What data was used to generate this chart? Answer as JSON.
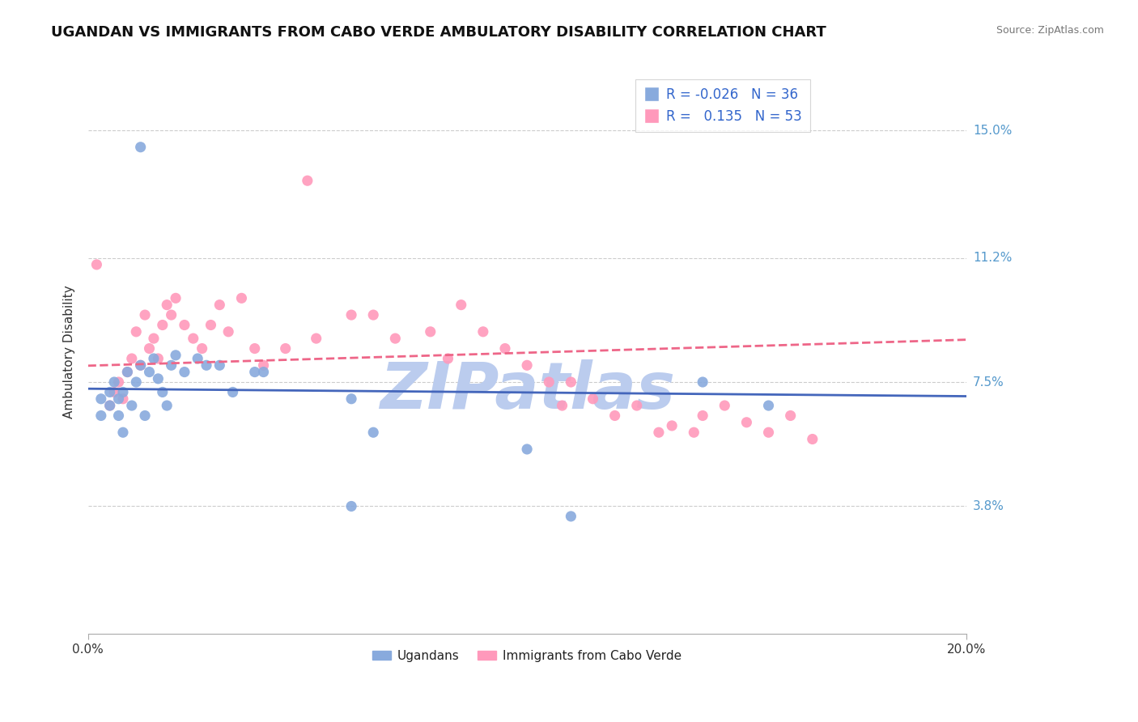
{
  "title": "UGANDAN VS IMMIGRANTS FROM CABO VERDE AMBULATORY DISABILITY CORRELATION CHART",
  "source": "Source: ZipAtlas.com",
  "ylabel": "Ambulatory Disability",
  "y_ticks": [
    0.0,
    0.038,
    0.075,
    0.112,
    0.15
  ],
  "y_tick_labels": [
    "",
    "3.8%",
    "7.5%",
    "11.2%",
    "15.0%"
  ],
  "xlim": [
    0.0,
    0.2
  ],
  "ylim": [
    0.0,
    0.168
  ],
  "blue_R": "-0.026",
  "blue_N": "36",
  "pink_R": "0.135",
  "pink_N": "53",
  "blue_color": "#88AADD",
  "pink_color": "#FF99BB",
  "blue_line_color": "#4466BB",
  "pink_line_color": "#EE6688",
  "grid_color": "#CCCCCC",
  "watermark": "ZIPatlas",
  "watermark_color": "#BBCCEE",
  "blue_scatter_x": [
    0.012,
    0.003,
    0.003,
    0.005,
    0.005,
    0.006,
    0.007,
    0.007,
    0.008,
    0.008,
    0.009,
    0.01,
    0.011,
    0.012,
    0.013,
    0.014,
    0.015,
    0.016,
    0.017,
    0.018,
    0.019,
    0.02,
    0.022,
    0.025,
    0.027,
    0.03,
    0.033,
    0.038,
    0.04,
    0.06,
    0.065,
    0.1,
    0.11,
    0.14,
    0.155,
    0.06
  ],
  "blue_scatter_y": [
    0.145,
    0.065,
    0.07,
    0.072,
    0.068,
    0.075,
    0.07,
    0.065,
    0.06,
    0.072,
    0.078,
    0.068,
    0.075,
    0.08,
    0.065,
    0.078,
    0.082,
    0.076,
    0.072,
    0.068,
    0.08,
    0.083,
    0.078,
    0.082,
    0.08,
    0.08,
    0.072,
    0.078,
    0.078,
    0.07,
    0.06,
    0.055,
    0.035,
    0.075,
    0.068,
    0.038
  ],
  "pink_scatter_x": [
    0.002,
    0.005,
    0.006,
    0.007,
    0.008,
    0.009,
    0.01,
    0.011,
    0.012,
    0.013,
    0.014,
    0.015,
    0.016,
    0.017,
    0.018,
    0.019,
    0.02,
    0.022,
    0.024,
    0.026,
    0.028,
    0.03,
    0.032,
    0.035,
    0.038,
    0.04,
    0.045,
    0.05,
    0.052,
    0.06,
    0.065,
    0.07,
    0.078,
    0.082,
    0.085,
    0.09,
    0.095,
    0.1,
    0.105,
    0.108,
    0.11,
    0.115,
    0.12,
    0.125,
    0.13,
    0.133,
    0.138,
    0.14,
    0.145,
    0.15,
    0.155,
    0.16,
    0.165
  ],
  "pink_scatter_y": [
    0.11,
    0.068,
    0.072,
    0.075,
    0.07,
    0.078,
    0.082,
    0.09,
    0.08,
    0.095,
    0.085,
    0.088,
    0.082,
    0.092,
    0.098,
    0.095,
    0.1,
    0.092,
    0.088,
    0.085,
    0.092,
    0.098,
    0.09,
    0.1,
    0.085,
    0.08,
    0.085,
    0.135,
    0.088,
    0.095,
    0.095,
    0.088,
    0.09,
    0.082,
    0.098,
    0.09,
    0.085,
    0.08,
    0.075,
    0.068,
    0.075,
    0.07,
    0.065,
    0.068,
    0.06,
    0.062,
    0.06,
    0.065,
    0.068,
    0.063,
    0.06,
    0.065,
    0.058
  ],
  "bg_color": "#FFFFFF",
  "title_fontsize": 13,
  "label_fontsize": 11,
  "tick_fontsize": 11,
  "legend_fontsize": 12
}
